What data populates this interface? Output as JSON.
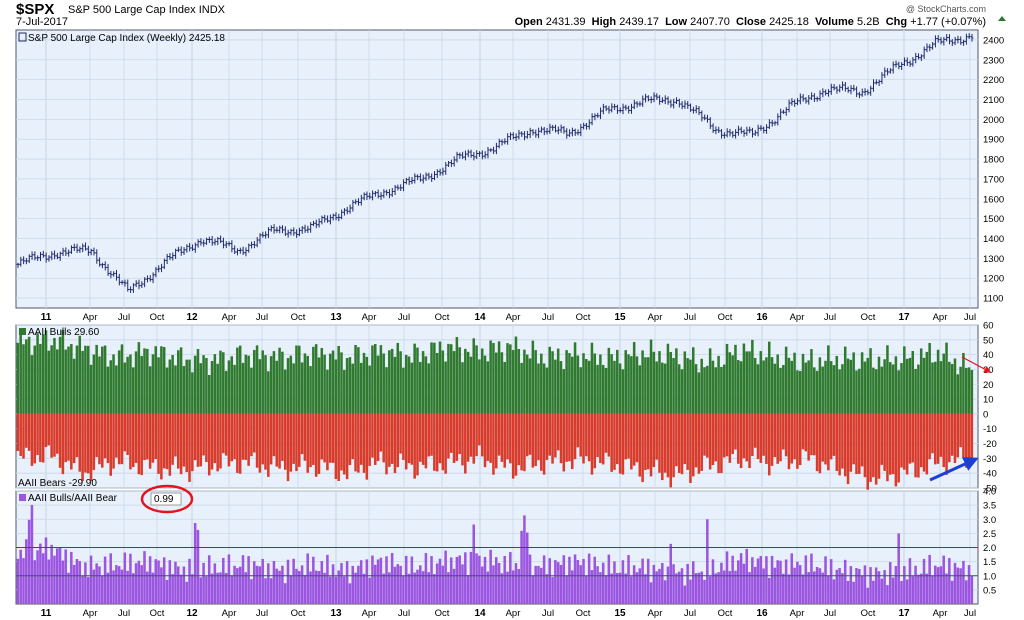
{
  "header": {
    "symbol": "$SPX",
    "name": "S&P 500 Large Cap Index",
    "exchange": "INDX",
    "date": "7-Jul-2017",
    "credit": "@ StockCharts.com",
    "open_label": "Open",
    "open": "2431.39",
    "high_label": "High",
    "high": "2439.17",
    "low_label": "Low",
    "low": "2407.70",
    "close_label": "Close",
    "close": "2425.18",
    "volume_label": "Volume",
    "volume": "5.2B",
    "chg_label": "Chg",
    "chg": "+1.77 (+0.07%)"
  },
  "colors": {
    "plot_bg": "#e8f1fb",
    "grid": "#c9d8ea",
    "price": "#1f2a6b",
    "bulls": "#2f7a2f",
    "bears": "#d93b2b",
    "ratio": "#9b55e0",
    "ref_line_2": "#c0112e",
    "ref_line_1": "#2b6b2b",
    "annotation_circle": "#e3131f",
    "arrow_blue": "#1a3fd4",
    "arrow_red": "#e3131f"
  },
  "x_axis": {
    "ticks": [
      "11",
      "Apr",
      "Jul",
      "Oct",
      "12",
      "Apr",
      "Jul",
      "Oct",
      "13",
      "Apr",
      "Jul",
      "Oct",
      "14",
      "Apr",
      "Jul",
      "Oct",
      "15",
      "Apr",
      "Jul",
      "Oct",
      "16",
      "Apr",
      "Jul",
      "Oct",
      "17",
      "Apr",
      "Jul"
    ],
    "year_labels": [
      "11",
      "12",
      "13",
      "14",
      "15",
      "16",
      "17"
    ]
  },
  "chart_data": [
    {
      "type": "line",
      "title": "S&P 500 Large Cap Index (Weekly) 2425.18",
      "x": [
        "2011-01",
        "2011-04",
        "2011-07",
        "2011-10",
        "2012-01",
        "2012-04",
        "2012-07",
        "2012-10",
        "2013-01",
        "2013-04",
        "2013-07",
        "2013-10",
        "2014-01",
        "2014-04",
        "2014-07",
        "2014-10",
        "2015-01",
        "2015-04",
        "2015-07",
        "2015-10",
        "2016-01",
        "2016-04",
        "2016-07",
        "2016-10",
        "2017-01",
        "2017-04",
        "2017-07"
      ],
      "series": [
        {
          "values": [
            1270,
            1330,
            1340,
            1130,
            1280,
            1400,
            1340,
            1440,
            1450,
            1560,
            1640,
            1700,
            1800,
            1860,
            1950,
            1930,
            2040,
            2090,
            2100,
            1950,
            1920,
            2060,
            2150,
            2140,
            2270,
            2380,
            2425
          ]
        }
      ],
      "ylim": [
        1050,
        2450
      ],
      "yticks": [
        1100,
        1200,
        1300,
        1400,
        1500,
        1600,
        1700,
        1800,
        1900,
        2000,
        2100,
        2200,
        2300,
        2400
      ]
    },
    {
      "type": "bar",
      "title": "AAII Bulls 29.60",
      "series": [
        {
          "name": "AAII Bulls",
          "values": [
            48,
            50,
            44,
            38,
            42,
            37,
            36,
            40,
            38,
            41,
            38,
            42,
            39,
            45,
            42,
            45,
            38,
            40,
            37,
            41,
            39,
            34,
            43,
            38,
            35,
            37,
            36,
            37,
            41,
            29.6
          ]
        },
        {
          "name": "AAII Bears",
          "values": [
            -30,
            -28,
            -40,
            -32,
            -36,
            -38,
            -34,
            -33,
            -37,
            -35,
            -40,
            -33,
            -36,
            -34,
            -30,
            -37,
            -33,
            -31,
            -34,
            -38,
            -42,
            -35,
            -30,
            -33,
            -30,
            -38,
            -44,
            -40,
            -33,
            -29.9
          ]
        }
      ],
      "ylim": [
        -50,
        60
      ],
      "yticks": [
        60,
        50,
        40,
        30,
        20,
        10,
        0,
        -10,
        -20,
        -30,
        -40,
        -50
      ]
    },
    {
      "type": "bar",
      "title": "AAII Bulls/AAII Bear",
      "value_label": "0.99",
      "series": [
        {
          "name": "AAII Bulls/AAII Bear",
          "values": [
            1.6,
            1.8,
            1.1,
            1.2,
            1.3,
            1.0,
            1.1,
            1.2,
            1.0,
            1.2,
            0.95,
            1.3,
            1.1,
            1.3,
            1.4,
            1.2,
            1.15,
            1.3,
            1.1,
            1.1,
            0.9,
            1.0,
            1.4,
            1.2,
            1.2,
            1.0,
            0.85,
            0.95,
            1.2,
            0.99
          ]
        }
      ],
      "ylim": [
        0,
        4.0
      ],
      "yticks": [
        0.5,
        1.0,
        1.5,
        2.0,
        2.5,
        3.0,
        3.5,
        4.0
      ],
      "reference_lines": [
        2.0,
        1.0
      ]
    }
  ],
  "annotations": {
    "bears_label": "AAII Bears -29.90"
  }
}
